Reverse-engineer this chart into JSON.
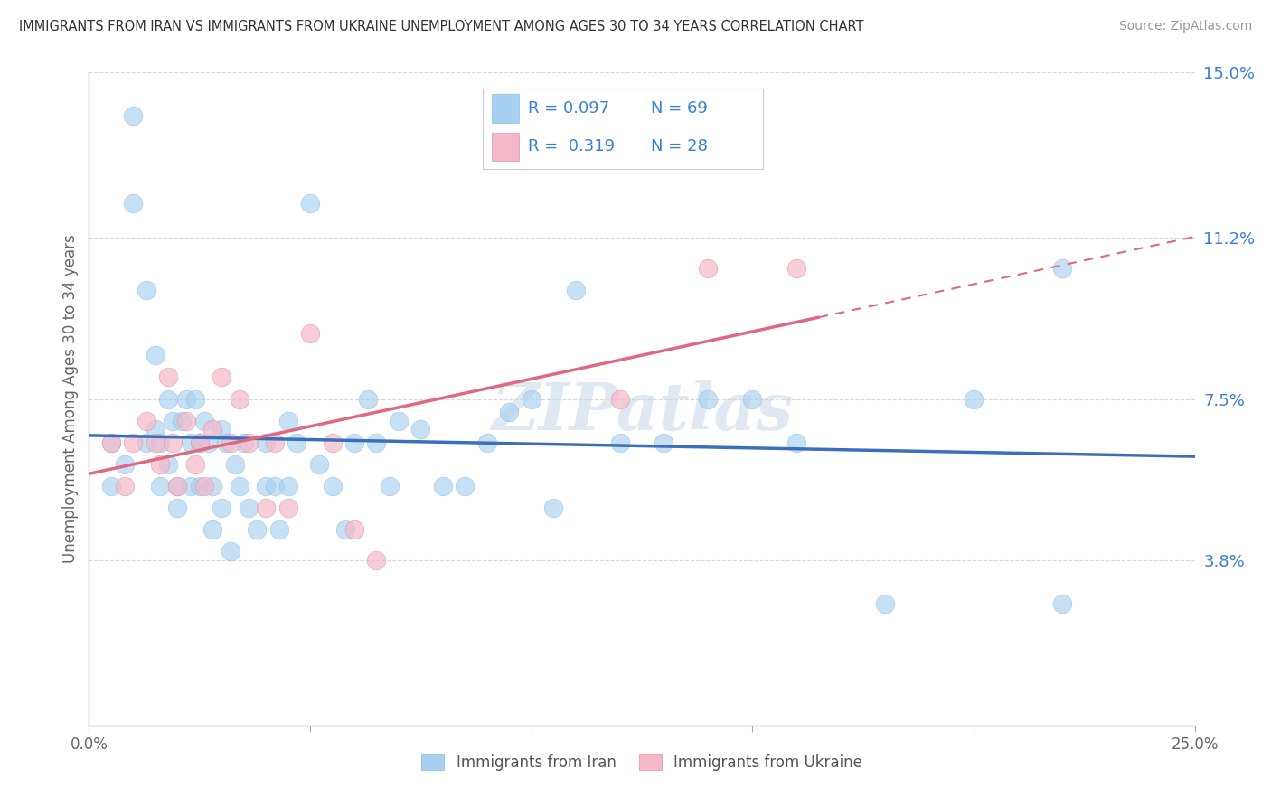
{
  "title": "IMMIGRANTS FROM IRAN VS IMMIGRANTS FROM UKRAINE UNEMPLOYMENT AMONG AGES 30 TO 34 YEARS CORRELATION CHART",
  "source": "Source: ZipAtlas.com",
  "ylabel": "Unemployment Among Ages 30 to 34 years",
  "xlim": [
    0.0,
    0.25
  ],
  "ylim": [
    0.0,
    0.15
  ],
  "xtick_values": [
    0.0,
    0.05,
    0.1,
    0.15,
    0.2,
    0.25
  ],
  "xtick_labels": [
    "0.0%",
    "",
    "",
    "",
    "",
    "25.0%"
  ],
  "ytick_right_labels": [
    "15.0%",
    "11.2%",
    "7.5%",
    "3.8%"
  ],
  "ytick_right_values": [
    0.15,
    0.112,
    0.075,
    0.038
  ],
  "color_iran": "#a8d0f0",
  "color_ukraine": "#f5b8c8",
  "color_iran_line": "#3a6fbe",
  "color_ukraine_line": "#e06880",
  "legend_iran_r": "0.097",
  "legend_iran_n": "69",
  "legend_ukraine_r": "0.319",
  "legend_ukraine_n": "28",
  "iran_line_y0": 0.062,
  "iran_line_y1": 0.075,
  "ukraine_line_y0": 0.048,
  "ukraine_line_y1": 0.105,
  "ukraine_line_x1": 0.165,
  "iran_x": [
    0.005,
    0.005,
    0.008,
    0.01,
    0.01,
    0.013,
    0.013,
    0.015,
    0.015,
    0.016,
    0.016,
    0.018,
    0.018,
    0.019,
    0.02,
    0.02,
    0.021,
    0.022,
    0.023,
    0.023,
    0.024,
    0.025,
    0.025,
    0.026,
    0.027,
    0.028,
    0.028,
    0.03,
    0.03,
    0.031,
    0.032,
    0.033,
    0.034,
    0.035,
    0.036,
    0.038,
    0.04,
    0.04,
    0.042,
    0.043,
    0.045,
    0.045,
    0.047,
    0.05,
    0.052,
    0.055,
    0.058,
    0.06,
    0.063,
    0.065,
    0.068,
    0.07,
    0.075,
    0.08,
    0.085,
    0.09,
    0.095,
    0.1,
    0.105,
    0.11,
    0.12,
    0.13,
    0.14,
    0.15,
    0.16,
    0.18,
    0.2,
    0.22,
    0.22
  ],
  "iran_y": [
    0.065,
    0.055,
    0.06,
    0.14,
    0.12,
    0.1,
    0.065,
    0.085,
    0.068,
    0.065,
    0.055,
    0.075,
    0.06,
    0.07,
    0.055,
    0.05,
    0.07,
    0.075,
    0.065,
    0.055,
    0.075,
    0.065,
    0.055,
    0.07,
    0.065,
    0.055,
    0.045,
    0.068,
    0.05,
    0.065,
    0.04,
    0.06,
    0.055,
    0.065,
    0.05,
    0.045,
    0.065,
    0.055,
    0.055,
    0.045,
    0.07,
    0.055,
    0.065,
    0.12,
    0.06,
    0.055,
    0.045,
    0.065,
    0.075,
    0.065,
    0.055,
    0.07,
    0.068,
    0.055,
    0.055,
    0.065,
    0.072,
    0.075,
    0.05,
    0.1,
    0.065,
    0.065,
    0.075,
    0.075,
    0.065,
    0.028,
    0.075,
    0.028,
    0.105
  ],
  "ukraine_x": [
    0.005,
    0.008,
    0.01,
    0.013,
    0.015,
    0.016,
    0.018,
    0.019,
    0.02,
    0.022,
    0.024,
    0.025,
    0.026,
    0.028,
    0.03,
    0.032,
    0.034,
    0.036,
    0.04,
    0.042,
    0.045,
    0.05,
    0.055,
    0.06,
    0.065,
    0.12,
    0.14,
    0.16
  ],
  "ukraine_y": [
    0.065,
    0.055,
    0.065,
    0.07,
    0.065,
    0.06,
    0.08,
    0.065,
    0.055,
    0.07,
    0.06,
    0.065,
    0.055,
    0.068,
    0.08,
    0.065,
    0.075,
    0.065,
    0.05,
    0.065,
    0.05,
    0.09,
    0.065,
    0.045,
    0.038,
    0.075,
    0.105,
    0.105
  ],
  "watermark_text": "ZIPatlas",
  "bg_color": "#ffffff",
  "grid_color": "#d8d8d8"
}
